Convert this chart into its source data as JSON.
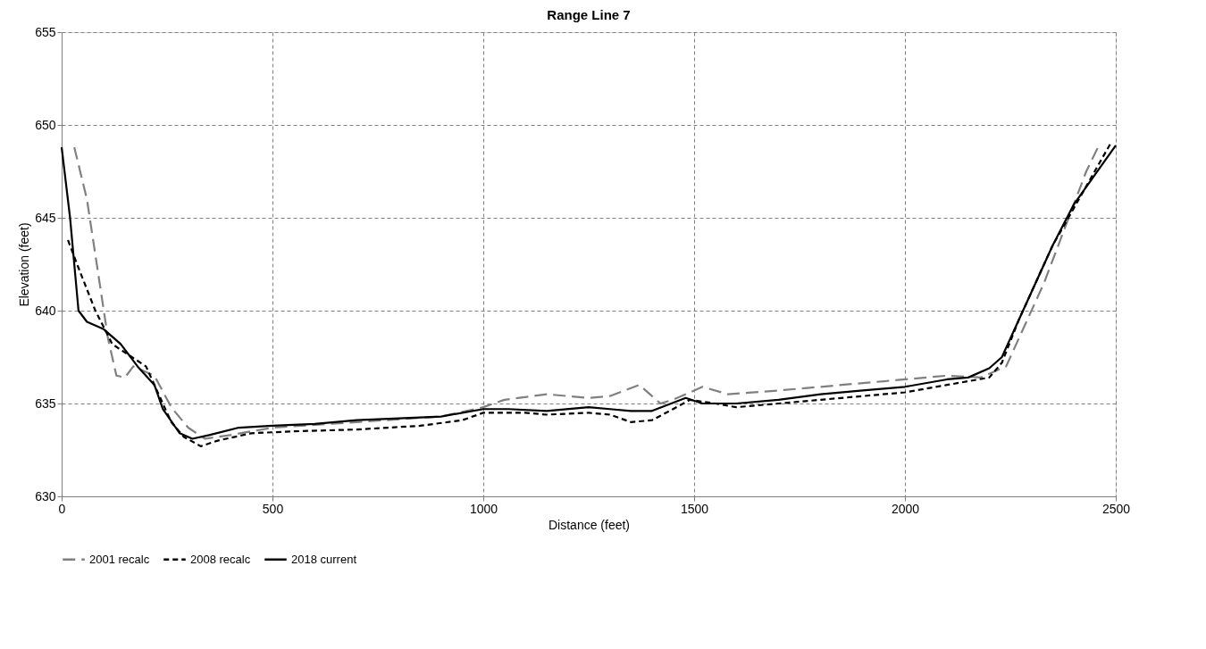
{
  "chart_data": {
    "type": "line",
    "title": "Range Line 7",
    "xlabel": "Distance (feet)",
    "ylabel": "Elevation (feet)",
    "xlim": [
      0,
      2500
    ],
    "xticks": [
      0,
      500,
      1000,
      1500,
      2000,
      2500
    ],
    "ylim": [
      630,
      655
    ],
    "yticks": [
      630,
      635,
      640,
      645,
      650,
      655
    ],
    "grid": true,
    "legend": "bottom",
    "marker": "none",
    "series": [
      {
        "name": "2001 recalc",
        "color": "#808080",
        "line_style": "dashed",
        "x": [
          30,
          60,
          90,
          110,
          130,
          150,
          170,
          220,
          260,
          300,
          340,
          400,
          500,
          700,
          900,
          1000,
          1050,
          1150,
          1250,
          1300,
          1370,
          1420,
          1450,
          1520,
          1580,
          1700,
          1850,
          1950,
          2100,
          2180,
          2240,
          2280,
          2330,
          2380,
          2430,
          2460
        ],
        "values": [
          648.8,
          646,
          641.5,
          638.5,
          636.5,
          636.4,
          637,
          636.5,
          634.8,
          633.7,
          633.1,
          633.3,
          633.7,
          634,
          634.3,
          634.8,
          635.2,
          635.5,
          635.3,
          635.4,
          636,
          635,
          635.2,
          635.9,
          635.5,
          635.7,
          636,
          636.2,
          636.5,
          636.4,
          637,
          639,
          641.5,
          644.5,
          647.5,
          648.9
        ]
      },
      {
        "name": "2008 recalc",
        "color": "#000000",
        "line_style": "dotted",
        "x": [
          15,
          40,
          80,
          120,
          160,
          200,
          230,
          260,
          290,
          330,
          370,
          450,
          550,
          700,
          850,
          950,
          1000,
          1100,
          1150,
          1250,
          1300,
          1350,
          1400,
          1450,
          1490,
          1550,
          1600,
          1700,
          1800,
          1900,
          2000,
          2100,
          2200,
          2230,
          2270,
          2300,
          2350,
          2400,
          2450,
          2490
        ],
        "values": [
          643.8,
          642.3,
          640,
          638.2,
          637.6,
          637,
          635.5,
          634,
          633.2,
          632.7,
          633,
          633.4,
          633.5,
          633.6,
          633.8,
          634.1,
          634.5,
          634.5,
          634.4,
          634.5,
          634.4,
          634,
          634.1,
          634.7,
          635.2,
          635,
          634.8,
          635,
          635.2,
          635.4,
          635.6,
          636,
          636.4,
          637.2,
          639.5,
          641,
          643.5,
          645.5,
          647.5,
          649.1
        ]
      },
      {
        "name": "2018 current",
        "color": "#000000",
        "line_style": "solid",
        "x": [
          0,
          20,
          40,
          60,
          100,
          140,
          180,
          220,
          240,
          280,
          310,
          350,
          420,
          500,
          600,
          700,
          800,
          900,
          1000,
          1060,
          1150,
          1250,
          1300,
          1350,
          1400,
          1480,
          1520,
          1600,
          1700,
          1800,
          1900,
          2000,
          2100,
          2150,
          2200,
          2230,
          2260,
          2300,
          2350,
          2400,
          2450,
          2500
        ],
        "values": [
          648.8,
          645,
          640,
          639.4,
          639,
          638.2,
          637,
          636,
          634.7,
          633.4,
          633.1,
          633.3,
          633.7,
          633.8,
          633.9,
          634.1,
          634.2,
          634.3,
          634.7,
          634.7,
          634.6,
          634.8,
          634.7,
          634.6,
          634.6,
          635.3,
          635,
          635,
          635.2,
          635.5,
          635.7,
          635.9,
          636.3,
          636.4,
          636.9,
          637.5,
          639,
          641,
          643.5,
          645.7,
          647.3,
          648.9
        ]
      }
    ]
  }
}
